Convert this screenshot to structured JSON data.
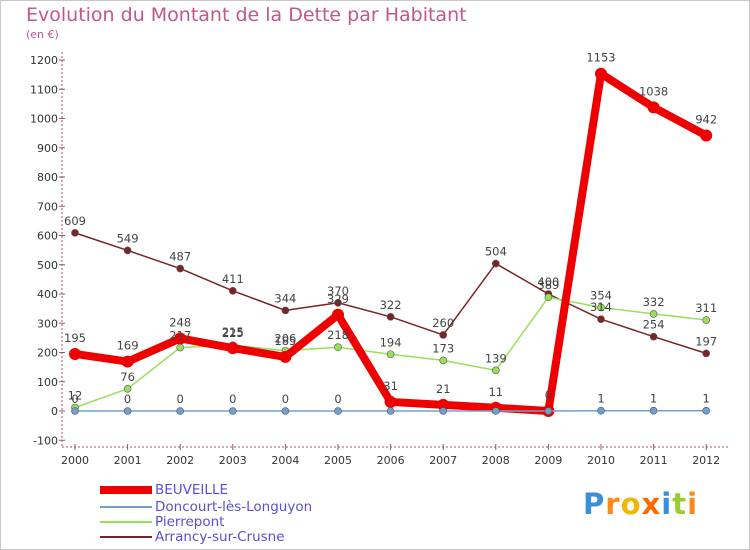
{
  "title": "Evolution du Montant de la Dette par Habitant",
  "subtitle": "(en €)",
  "logo": "Proxiti",
  "chart_data": {
    "type": "line",
    "title": "Evolution du Montant de la Dette par Habitant",
    "subtitle": "(en €)",
    "x": [
      "2000",
      "2001",
      "2002",
      "2003",
      "2004",
      "2005",
      "2006",
      "2007",
      "2008",
      "2009",
      "2010",
      "2011",
      "2012"
    ],
    "y_ticks": [
      -100,
      0,
      100,
      200,
      300,
      400,
      500,
      600,
      700,
      800,
      900,
      1000,
      1100,
      1200
    ],
    "ylim": [
      -100,
      1200
    ],
    "grid": false,
    "legend_position": "bottom-left",
    "series": [
      {
        "name": "BEUVEILLE",
        "color": "#ee0000",
        "values": [
          195,
          169,
          248,
          215,
          185,
          329,
          31,
          21,
          11,
          0,
          1153,
          1038,
          942
        ],
        "labels": [
          "195",
          "169",
          "248",
          "215",
          "185",
          "329",
          "31",
          "21",
          "11",
          "0",
          "1153",
          "1038",
          "942"
        ]
      },
      {
        "name": "Doncourt-lès-Longuyon",
        "color": "#6fa0d0",
        "values": [
          0,
          0,
          0,
          0,
          0,
          0,
          0,
          0,
          0,
          0,
          1,
          1,
          1
        ],
        "labels": [
          "0",
          "0",
          "0",
          "0",
          "0",
          "0",
          "",
          "",
          "",
          "",
          "1",
          "1",
          "1"
        ]
      },
      {
        "name": "Pierrepont",
        "color": "#99e05a",
        "values": [
          12,
          76,
          217,
          225,
          206,
          218,
          194,
          173,
          139,
          389,
          354,
          332,
          311
        ],
        "labels": [
          "12",
          "76",
          "217",
          "225",
          "206",
          "218",
          "194",
          "173",
          "139",
          "389",
          "354",
          "332",
          "311"
        ]
      },
      {
        "name": "Arrancy-sur-Crusne",
        "color": "#7a2424",
        "values": [
          609,
          549,
          487,
          411,
          344,
          370,
          322,
          260,
          504,
          400,
          314,
          254,
          197
        ],
        "labels": [
          "609",
          "549",
          "487",
          "411",
          "344",
          "370",
          "322",
          "260",
          "504",
          "400",
          "314",
          "254",
          "197"
        ]
      }
    ]
  }
}
